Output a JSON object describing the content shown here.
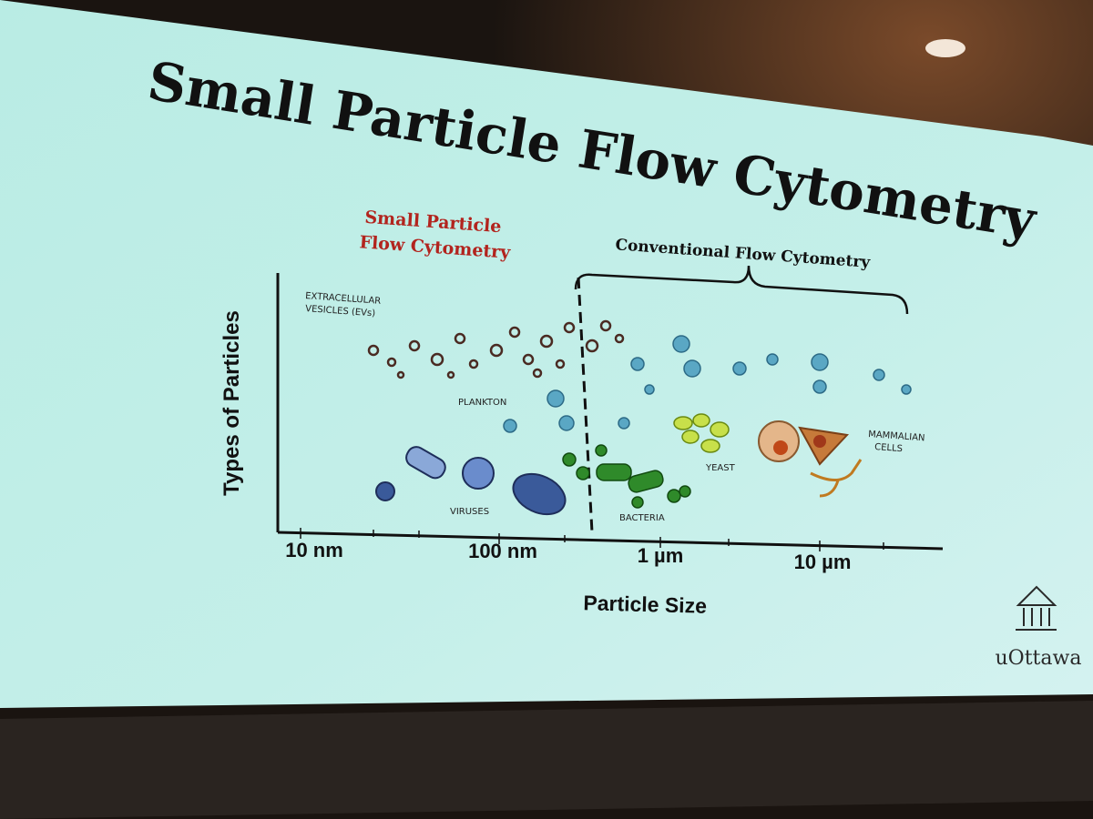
{
  "slide": {
    "title": "Small Particle Flow Cytometry",
    "logo": "uOttawa"
  },
  "diagram": {
    "small_particle_label": [
      "Small Particle",
      "Flow Cytometry"
    ],
    "conventional_label": "Conventional Flow Cytometry",
    "y_axis_title": "Types of Particles",
    "x_axis_title": "Particle Size",
    "x_ticks": [
      "10 nm",
      "100 nm",
      "1 µm",
      "10 µm"
    ],
    "particle_labels": {
      "extracellular_vesicles": [
        "EXTRACELLULAR",
        "VESICLES (EVs)"
      ],
      "plankton": "PLANKTON",
      "viruses": "VIRUSES",
      "bacteria": "BACTERIA",
      "yeast": "YEAST",
      "mammalian_cells": [
        "MAMMALIAN",
        "CELLS"
      ]
    }
  }
}
